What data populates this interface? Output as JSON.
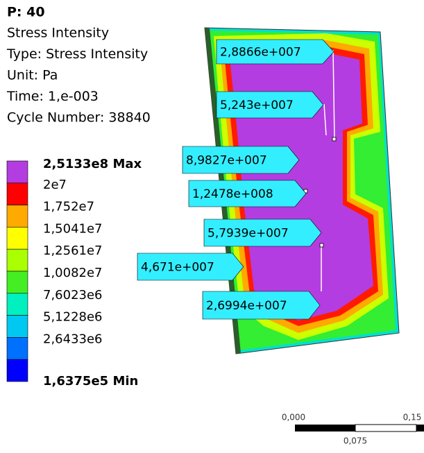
{
  "header": {
    "title": "P: 40",
    "lines": [
      "Stress Intensity",
      "Type: Stress Intensity",
      "Unit: Pa",
      "Time: 1,e-003",
      "Cycle Number: 38840"
    ]
  },
  "legend": {
    "labels": [
      "2,5133e8 Max",
      "2e7",
      "1,752e7",
      "1,5041e7",
      "1,2561e7",
      "1,0082e7",
      "7,6023e6",
      "5,1228e6",
      "2,6433e6",
      "1,6375e5 Min"
    ]
  },
  "probes": [
    "2,8866e+007",
    "5,243e+007",
    "8,9827e+007",
    "1,2478e+008",
    "5,7939e+007",
    "4,671e+007",
    "2,6994e+007"
  ],
  "scale": {
    "labels": [
      "0,000",
      "0,15",
      "0,075"
    ]
  }
}
